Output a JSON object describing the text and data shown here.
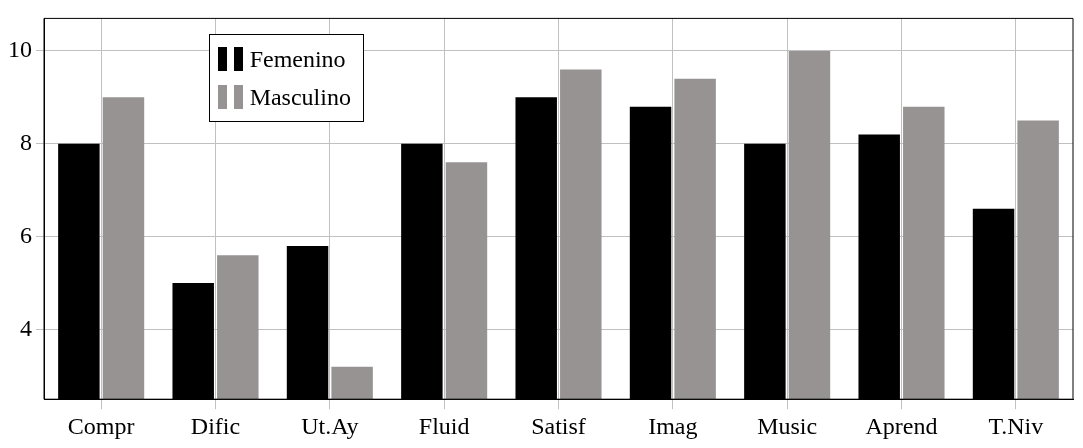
{
  "chart_data": {
    "type": "bar",
    "categories": [
      "Compr",
      "Dific",
      "Ut.Ay",
      "Fluid",
      "Satisf",
      "Imag",
      "Music",
      "Aprend",
      "T.Niv"
    ],
    "series": [
      {
        "name": "Femenino",
        "color": "#000000",
        "values": [
          8.0,
          5.0,
          5.8,
          8.0,
          9.0,
          8.8,
          8.0,
          8.2,
          6.6
        ]
      },
      {
        "name": "Masculino",
        "color": "#979392",
        "values": [
          9.0,
          5.6,
          3.2,
          7.6,
          9.6,
          9.4,
          10.0,
          8.8,
          8.5
        ]
      }
    ],
    "ylim": [
      2.5,
      10.7
    ],
    "yticks": [
      4,
      6,
      8,
      10
    ],
    "grid": true,
    "legend": "top left"
  }
}
